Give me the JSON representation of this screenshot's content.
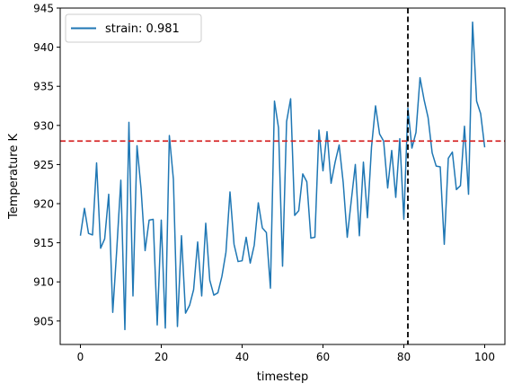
{
  "chart_data": {
    "type": "line",
    "title": "",
    "xlabel": "timestep",
    "ylabel": "Temperature K",
    "xlim": [
      -5,
      105
    ],
    "ylim": [
      902,
      945
    ],
    "xticks": [
      0,
      20,
      40,
      60,
      80,
      100
    ],
    "yticks": [
      905,
      910,
      915,
      920,
      925,
      930,
      935,
      940,
      945
    ],
    "grid": false,
    "legend": {
      "placement": "upper-left"
    },
    "series": [
      {
        "name": "strain: 0.981",
        "color": "#1f77b4",
        "x": [
          0,
          1,
          2,
          3,
          4,
          5,
          6,
          7,
          8,
          9,
          10,
          11,
          12,
          13,
          14,
          15,
          16,
          17,
          18,
          19,
          20,
          21,
          22,
          23,
          24,
          25,
          26,
          27,
          28,
          29,
          30,
          31,
          32,
          33,
          34,
          35,
          36,
          37,
          38,
          39,
          40,
          41,
          42,
          43,
          44,
          45,
          46,
          47,
          48,
          49,
          50,
          51,
          52,
          53,
          54,
          55,
          56,
          57,
          58,
          59,
          60,
          61,
          62,
          63,
          64,
          65,
          66,
          67,
          68,
          69,
          70,
          71,
          72,
          73,
          74,
          75,
          76,
          77,
          78,
          79,
          80,
          81,
          82,
          83,
          84,
          85,
          86,
          87,
          88,
          89,
          90,
          91,
          92,
          93,
          94,
          95,
          96,
          97,
          98,
          99,
          100
        ],
        "y": [
          915.9,
          919.4,
          916.2,
          916.0,
          925.2,
          914.3,
          915.5,
          921.2,
          906.1,
          914.2,
          923.0,
          903.9,
          930.4,
          908.2,
          927.4,
          921.9,
          914.0,
          917.9,
          918.0,
          904.5,
          917.9,
          904.1,
          928.7,
          923.1,
          904.3,
          915.9,
          906.0,
          907.0,
          909.0,
          915.1,
          908.2,
          917.5,
          910.2,
          908.3,
          908.6,
          910.7,
          913.8,
          921.5,
          914.8,
          912.6,
          912.7,
          915.7,
          912.4,
          914.7,
          920.1,
          916.9,
          916.3,
          909.2,
          933.1,
          929.7,
          912.0,
          930.5,
          933.4,
          918.5,
          919.1,
          923.8,
          922.8,
          915.6,
          915.7,
          929.4,
          924.2,
          929.2,
          922.6,
          925.3,
          927.5,
          922.7,
          915.7,
          920.4,
          925.0,
          915.9,
          925.3,
          918.2,
          927.2,
          932.5,
          928.9,
          928.0,
          922.0,
          926.8,
          920.8,
          928.3,
          918.0,
          932.2,
          927.1,
          929.1,
          936.1,
          933.3,
          931.0,
          926.5,
          924.8,
          924.7,
          914.8,
          925.8,
          926.6,
          921.8,
          922.3,
          929.9,
          921.2,
          943.2,
          933.1,
          931.5,
          927.2
        ]
      }
    ],
    "reference_lines": [
      {
        "orientation": "horizontal",
        "value": 928,
        "color": "#d62728",
        "style": "dashed"
      },
      {
        "orientation": "vertical",
        "value": 81,
        "color": "#000000",
        "style": "dashed"
      }
    ]
  }
}
